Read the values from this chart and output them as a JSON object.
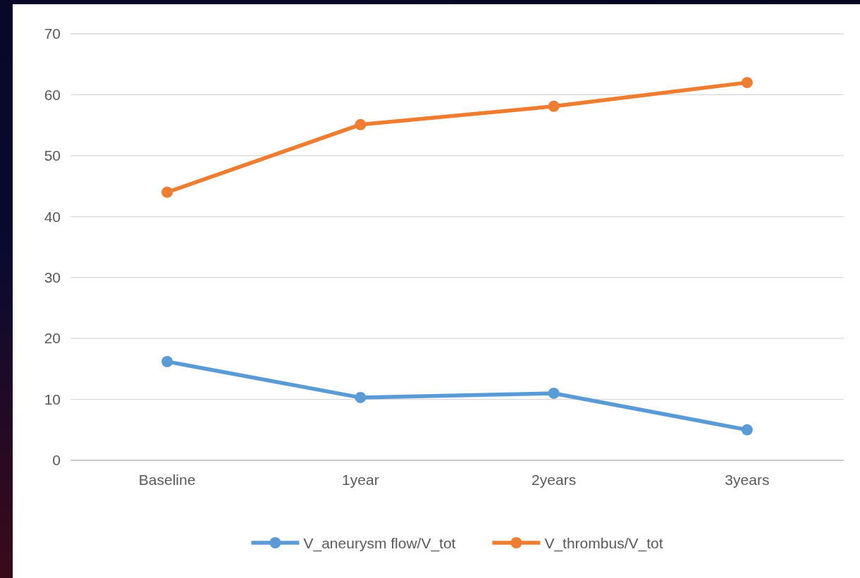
{
  "chart_data": {
    "type": "line",
    "categories": [
      "Baseline",
      "1year",
      "2years",
      "3years"
    ],
    "series": [
      {
        "name": "V_aneurysm flow/V_tot",
        "color": "#5b9bd5",
        "values": [
          16.2,
          10.3,
          11,
          5
        ]
      },
      {
        "name": "V_thrombus/V_tot",
        "color": "#ed7d31",
        "values": [
          44,
          55.1,
          58.1,
          62
        ]
      }
    ],
    "ylim": [
      0,
      70
    ],
    "yticks": [
      0,
      10,
      20,
      30,
      40,
      50,
      60,
      70
    ],
    "grid": "y",
    "legend": "bottom",
    "marker": "circle",
    "line_style": "solid"
  }
}
